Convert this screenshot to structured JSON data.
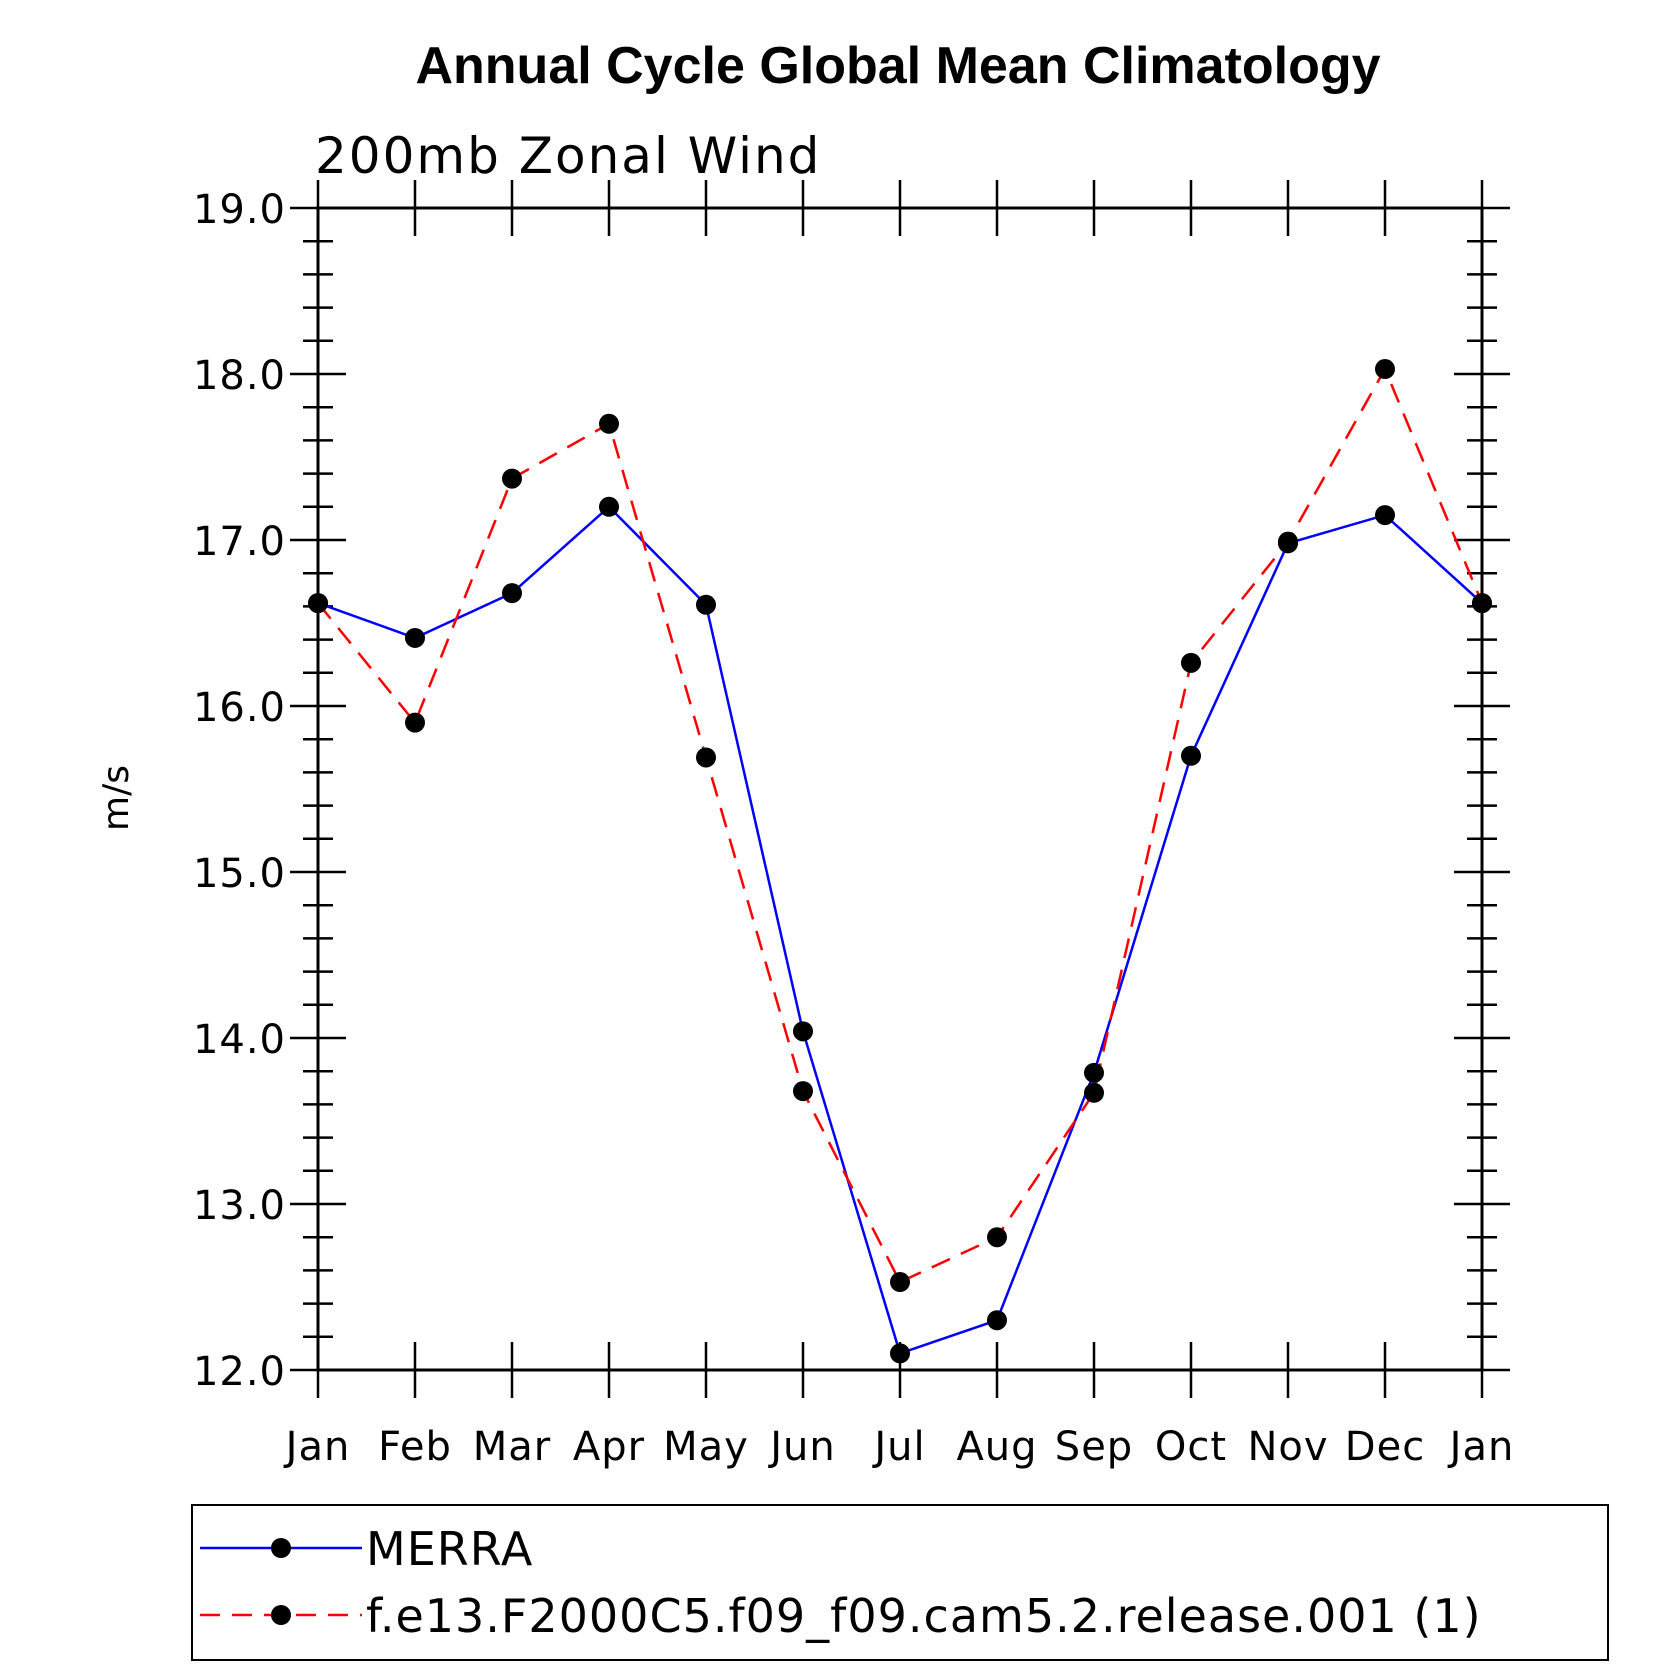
{
  "chart_data": {
    "type": "line",
    "title": "Annual Cycle Global Mean Climatology",
    "subtitle": "200mb Zonal Wind",
    "ylabel": "m/s",
    "xlabel": "",
    "categories": [
      "Jan",
      "Feb",
      "Mar",
      "Apr",
      "May",
      "Jun",
      "Jul",
      "Aug",
      "Sep",
      "Oct",
      "Nov",
      "Dec",
      "Jan"
    ],
    "ylim": [
      12.0,
      19.0
    ],
    "yticks": [
      "12.0",
      "13.0",
      "14.0",
      "15.0",
      "16.0",
      "17.0",
      "18.0",
      "19.0"
    ],
    "grid": false,
    "legend_position": "bottom",
    "series": [
      {
        "name": "MERRA",
        "color": "#0000ff",
        "dash": "solid",
        "marker": "filled-circle",
        "values": [
          16.62,
          16.41,
          16.68,
          17.2,
          16.61,
          14.04,
          12.1,
          12.3,
          13.79,
          15.7,
          16.98,
          17.15,
          16.62
        ]
      },
      {
        "name": "f.e13.F2000C5.f09_f09.cam5.2.release.001 (1)",
        "color": "#ff0000",
        "dash": "dashed",
        "marker": "filled-circle",
        "values": [
          16.62,
          15.9,
          17.37,
          17.7,
          15.69,
          13.68,
          12.53,
          12.8,
          13.67,
          16.26,
          16.99,
          18.03,
          16.62
        ]
      }
    ]
  }
}
